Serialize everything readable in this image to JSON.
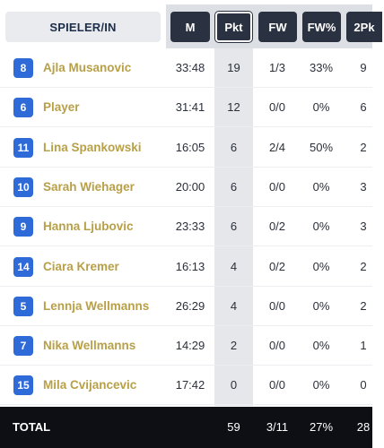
{
  "header": {
    "player_col": "SPIELER/IN",
    "columns": [
      "M",
      "Pkt",
      "FW",
      "FW%",
      "2Pk"
    ]
  },
  "players": [
    {
      "number": "8",
      "name": "Ajla Musanovic",
      "m": "33:48",
      "pkt": "19",
      "fw": "1/3",
      "fwp": "33%",
      "p2": "9"
    },
    {
      "number": "6",
      "name": "Player",
      "m": "31:41",
      "pkt": "12",
      "fw": "0/0",
      "fwp": "0%",
      "p2": "6"
    },
    {
      "number": "11",
      "name": "Lina Spankowski",
      "m": "16:05",
      "pkt": "6",
      "fw": "2/4",
      "fwp": "50%",
      "p2": "2"
    },
    {
      "number": "10",
      "name": "Sarah Wiehager",
      "m": "20:00",
      "pkt": "6",
      "fw": "0/0",
      "fwp": "0%",
      "p2": "3"
    },
    {
      "number": "9",
      "name": "Hanna Ljubovic",
      "m": "23:33",
      "pkt": "6",
      "fw": "0/2",
      "fwp": "0%",
      "p2": "3"
    },
    {
      "number": "14",
      "name": "Ciara Kremer",
      "m": "16:13",
      "pkt": "4",
      "fw": "0/2",
      "fwp": "0%",
      "p2": "2"
    },
    {
      "number": "5",
      "name": "Lennja Wellmanns",
      "m": "26:29",
      "pkt": "4",
      "fw": "0/0",
      "fwp": "0%",
      "p2": "2"
    },
    {
      "number": "7",
      "name": "Nika Wellmanns",
      "m": "14:29",
      "pkt": "2",
      "fw": "0/0",
      "fwp": "0%",
      "p2": "1"
    },
    {
      "number": "15",
      "name": "Mila Cvijancevic",
      "m": "17:42",
      "pkt": "0",
      "fw": "0/0",
      "fwp": "0%",
      "p2": "0"
    }
  ],
  "total": {
    "label": "TOTAL",
    "pkt": "59",
    "fw": "3/11",
    "fwp": "27%",
    "p2": "28"
  },
  "colors": {
    "badge": "#2f6bd8",
    "name": "#b8a048",
    "header_dark": "#2a3140",
    "footer": "#0d0f14"
  }
}
